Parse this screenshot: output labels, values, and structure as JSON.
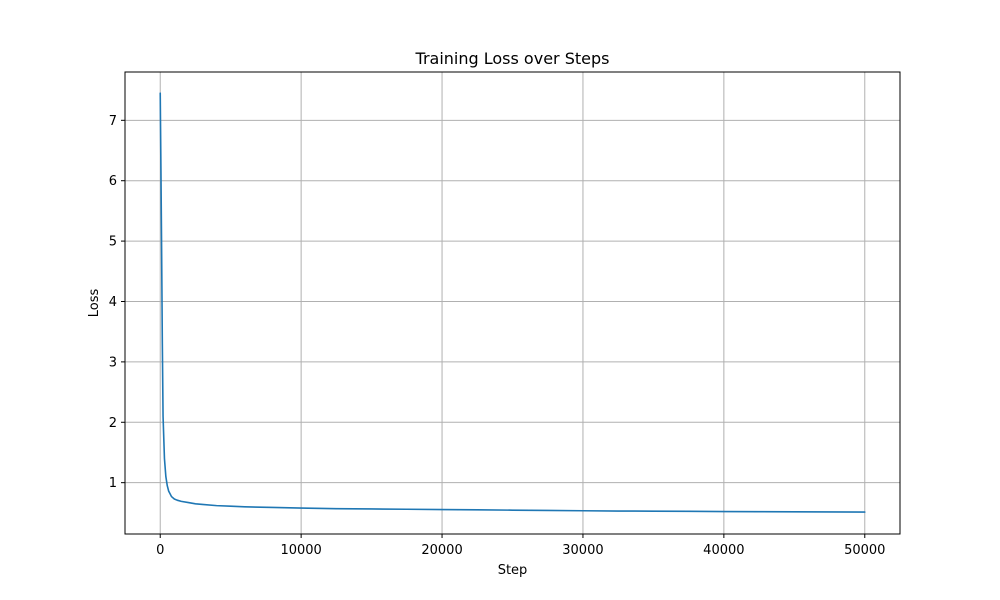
{
  "chart_data": {
    "type": "line",
    "title": "Training Loss over Steps",
    "xlabel": "Step",
    "ylabel": "Loss",
    "xlim": [
      -2500,
      52500
    ],
    "ylim": [
      0.15,
      7.8
    ],
    "xticks": [
      0,
      10000,
      20000,
      30000,
      40000,
      50000
    ],
    "yticks": [
      1,
      2,
      3,
      4,
      5,
      6,
      7
    ],
    "grid": true,
    "line_color": "#1f77b4",
    "series": [
      {
        "name": "Training Loss",
        "x": [
          0,
          50,
          100,
          150,
          200,
          300,
          400,
          500,
          600,
          800,
          1000,
          1200,
          1500,
          2000,
          2500,
          3000,
          4000,
          5000,
          6000,
          8000,
          10000,
          12500,
          15000,
          17500,
          20000,
          22500,
          25000,
          27500,
          30000,
          32500,
          35000,
          37500,
          40000,
          42500,
          45000,
          47500,
          50000
        ],
        "y": [
          7.45,
          6.2,
          4.8,
          3.3,
          2.1,
          1.4,
          1.1,
          0.95,
          0.86,
          0.77,
          0.73,
          0.71,
          0.69,
          0.67,
          0.65,
          0.64,
          0.62,
          0.61,
          0.6,
          0.59,
          0.58,
          0.57,
          0.565,
          0.56,
          0.555,
          0.55,
          0.545,
          0.54,
          0.535,
          0.53,
          0.528,
          0.525,
          0.522,
          0.52,
          0.518,
          0.515,
          0.513
        ]
      }
    ]
  }
}
